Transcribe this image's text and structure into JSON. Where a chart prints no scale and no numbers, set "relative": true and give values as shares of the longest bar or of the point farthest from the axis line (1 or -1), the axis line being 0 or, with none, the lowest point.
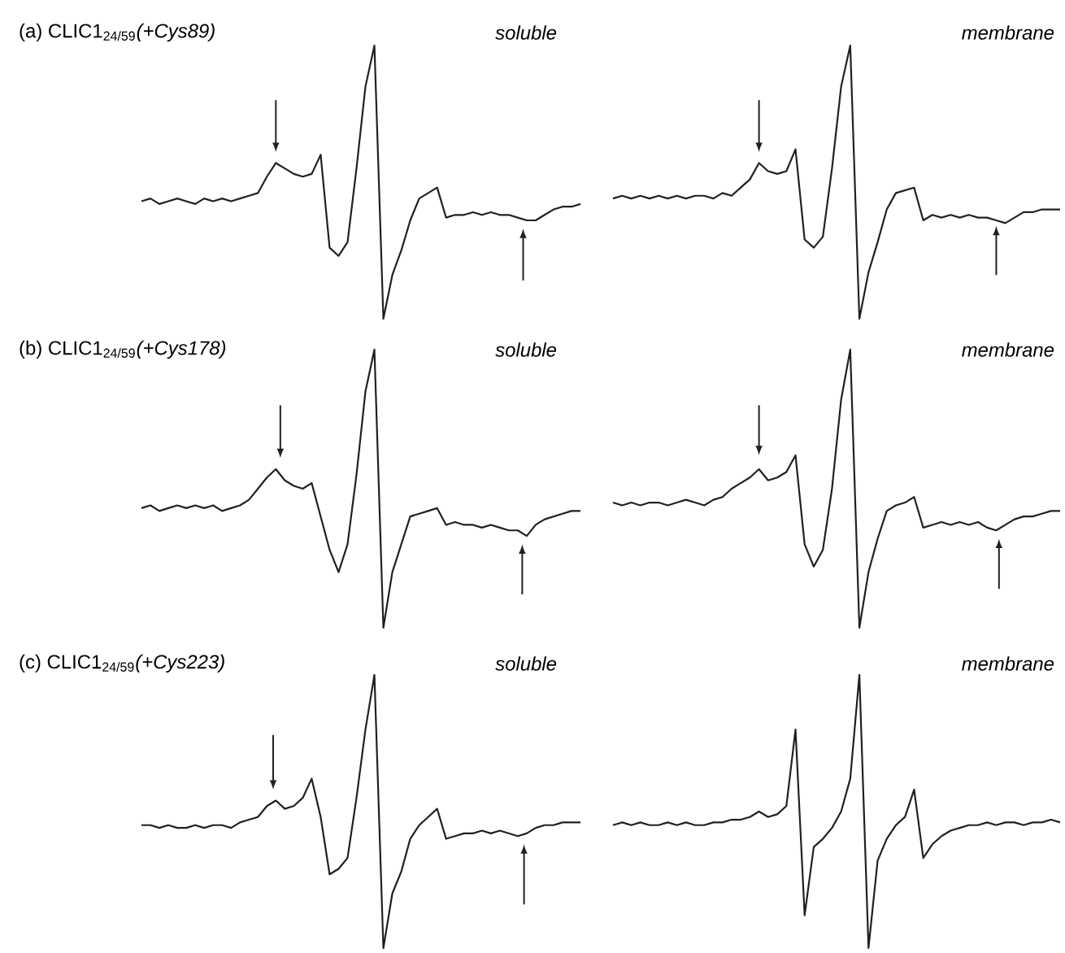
{
  "chart_data": [
    {
      "type": "line",
      "relative": true,
      "title": "(a) CLIC1$_{24/59}$*(+Cys89)*",
      "subtitle": "soluble",
      "color": "#231f20",
      "categories": [
        null,
        null,
        null,
        null,
        null,
        null,
        null,
        null,
        null,
        null,
        null,
        null,
        null,
        null,
        null,
        null,
        null,
        null,
        null,
        null,
        null,
        null,
        null,
        null,
        null,
        null,
        null,
        null,
        null,
        null,
        null,
        null,
        null,
        null,
        null,
        null,
        null,
        null,
        null,
        null,
        null,
        null,
        null,
        null,
        null,
        null,
        null,
        null,
        null,
        null
      ],
      "values": [
        0.43,
        0.44,
        0.42,
        0.43,
        0.44,
        0.43,
        0.42,
        0.44,
        0.43,
        0.44,
        0.43,
        0.44,
        0.45,
        0.46,
        0.52,
        0.57,
        0.55,
        0.53,
        0.52,
        0.53,
        0.6,
        0.26,
        0.23,
        0.28,
        0.55,
        0.85,
        1.0,
        0.0,
        0.16,
        0.25,
        0.36,
        0.44,
        0.46,
        0.48,
        0.37,
        0.38,
        0.38,
        0.39,
        0.38,
        0.39,
        0.38,
        0.38,
        0.37,
        0.36,
        0.36,
        0.38,
        0.4,
        0.41,
        0.41,
        0.42
      ]
    },
    {
      "type": "line",
      "relative": true,
      "title": "membrane",
      "color": "#231f20",
      "categories": [
        null,
        null,
        null,
        null,
        null,
        null,
        null,
        null,
        null,
        null,
        null,
        null,
        null,
        null,
        null,
        null,
        null,
        null,
        null,
        null,
        null,
        null,
        null,
        null,
        null,
        null,
        null,
        null,
        null,
        null,
        null,
        null,
        null,
        null,
        null,
        null,
        null,
        null,
        null,
        null,
        null,
        null,
        null,
        null,
        null,
        null,
        null,
        null,
        null,
        null
      ],
      "values": [
        0.44,
        0.45,
        0.44,
        0.45,
        0.44,
        0.45,
        0.44,
        0.45,
        0.44,
        0.45,
        0.45,
        0.44,
        0.46,
        0.45,
        0.48,
        0.51,
        0.57,
        0.54,
        0.53,
        0.54,
        0.62,
        0.29,
        0.26,
        0.3,
        0.55,
        0.85,
        1.0,
        0.0,
        0.17,
        0.28,
        0.4,
        0.46,
        0.47,
        0.48,
        0.36,
        0.38,
        0.37,
        0.38,
        0.37,
        0.38,
        0.37,
        0.37,
        0.36,
        0.35,
        0.37,
        0.39,
        0.39,
        0.4,
        0.4,
        0.4
      ]
    },
    {
      "type": "line",
      "relative": true,
      "title": "(b) CLIC1$_{24/59}$*(+Cys178)*",
      "subtitle": "soluble",
      "color": "#231f20",
      "categories": [
        null,
        null,
        null,
        null,
        null,
        null,
        null,
        null,
        null,
        null,
        null,
        null,
        null,
        null,
        null,
        null,
        null,
        null,
        null,
        null,
        null,
        null,
        null,
        null,
        null,
        null,
        null,
        null,
        null,
        null,
        null,
        null,
        null,
        null,
        null,
        null,
        null,
        null,
        null,
        null,
        null,
        null,
        null,
        null,
        null,
        null,
        null,
        null,
        null,
        null
      ],
      "values": [
        0.43,
        0.44,
        0.42,
        0.43,
        0.44,
        0.43,
        0.44,
        0.43,
        0.44,
        0.42,
        0.43,
        0.44,
        0.46,
        0.5,
        0.54,
        0.57,
        0.53,
        0.51,
        0.5,
        0.52,
        0.4,
        0.28,
        0.2,
        0.3,
        0.55,
        0.85,
        1.0,
        0.0,
        0.2,
        0.3,
        0.4,
        0.41,
        0.42,
        0.43,
        0.37,
        0.38,
        0.37,
        0.37,
        0.36,
        0.37,
        0.36,
        0.35,
        0.35,
        0.33,
        0.37,
        0.39,
        0.4,
        0.41,
        0.42,
        0.42
      ]
    },
    {
      "type": "line",
      "relative": true,
      "title": "membrane",
      "color": "#231f20",
      "categories": [
        null,
        null,
        null,
        null,
        null,
        null,
        null,
        null,
        null,
        null,
        null,
        null,
        null,
        null,
        null,
        null,
        null,
        null,
        null,
        null,
        null,
        null,
        null,
        null,
        null,
        null,
        null,
        null,
        null,
        null,
        null,
        null,
        null,
        null,
        null,
        null,
        null,
        null,
        null,
        null,
        null,
        null,
        null,
        null,
        null,
        null,
        null,
        null,
        null,
        null
      ],
      "values": [
        0.45,
        0.44,
        0.45,
        0.44,
        0.45,
        0.45,
        0.44,
        0.45,
        0.46,
        0.45,
        0.44,
        0.46,
        0.47,
        0.5,
        0.52,
        0.54,
        0.57,
        0.53,
        0.54,
        0.56,
        0.62,
        0.3,
        0.22,
        0.28,
        0.5,
        0.82,
        1.0,
        0.0,
        0.2,
        0.32,
        0.42,
        0.44,
        0.45,
        0.47,
        0.36,
        0.37,
        0.38,
        0.37,
        0.38,
        0.37,
        0.38,
        0.36,
        0.35,
        0.37,
        0.39,
        0.4,
        0.4,
        0.41,
        0.42,
        0.42
      ]
    },
    {
      "type": "line",
      "relative": true,
      "title": "(c) CLIC1$_{24/59}$*(+Cys223)*",
      "subtitle": "soluble",
      "color": "#231f20",
      "categories": [
        null,
        null,
        null,
        null,
        null,
        null,
        null,
        null,
        null,
        null,
        null,
        null,
        null,
        null,
        null,
        null,
        null,
        null,
        null,
        null,
        null,
        null,
        null,
        null,
        null,
        null,
        null,
        null,
        null,
        null,
        null,
        null,
        null,
        null,
        null,
        null,
        null,
        null,
        null,
        null,
        null,
        null,
        null,
        null,
        null,
        null,
        null,
        null,
        null,
        null
      ],
      "values": [
        0.45,
        0.45,
        0.44,
        0.45,
        0.44,
        0.44,
        0.45,
        0.44,
        0.45,
        0.45,
        0.44,
        0.46,
        0.47,
        0.48,
        0.52,
        0.54,
        0.51,
        0.52,
        0.55,
        0.62,
        0.48,
        0.27,
        0.29,
        0.33,
        0.55,
        0.8,
        1.0,
        0.0,
        0.2,
        0.28,
        0.4,
        0.45,
        0.48,
        0.51,
        0.4,
        0.41,
        0.42,
        0.42,
        0.43,
        0.42,
        0.43,
        0.42,
        0.41,
        0.42,
        0.44,
        0.45,
        0.45,
        0.46,
        0.46,
        0.46
      ]
    },
    {
      "type": "line",
      "relative": true,
      "title": "membrane",
      "color": "#231f20",
      "categories": [
        null,
        null,
        null,
        null,
        null,
        null,
        null,
        null,
        null,
        null,
        null,
        null,
        null,
        null,
        null,
        null,
        null,
        null,
        null,
        null,
        null,
        null,
        null,
        null,
        null,
        null,
        null,
        null,
        null,
        null,
        null,
        null,
        null,
        null,
        null,
        null,
        null,
        null,
        null,
        null,
        null,
        null,
        null,
        null,
        null,
        null,
        null,
        null,
        null,
        null
      ],
      "values": [
        0.45,
        0.46,
        0.45,
        0.46,
        0.45,
        0.45,
        0.46,
        0.45,
        0.46,
        0.45,
        0.45,
        0.46,
        0.46,
        0.47,
        0.47,
        0.48,
        0.5,
        0.48,
        0.49,
        0.52,
        0.8,
        0.12,
        0.37,
        0.4,
        0.44,
        0.5,
        0.62,
        1.0,
        0.0,
        0.32,
        0.4,
        0.45,
        0.48,
        0.58,
        0.33,
        0.38,
        0.41,
        0.43,
        0.44,
        0.45,
        0.45,
        0.46,
        0.45,
        0.46,
        0.46,
        0.45,
        0.46,
        0.46,
        0.47,
        0.46
      ]
    }
  ]
}
